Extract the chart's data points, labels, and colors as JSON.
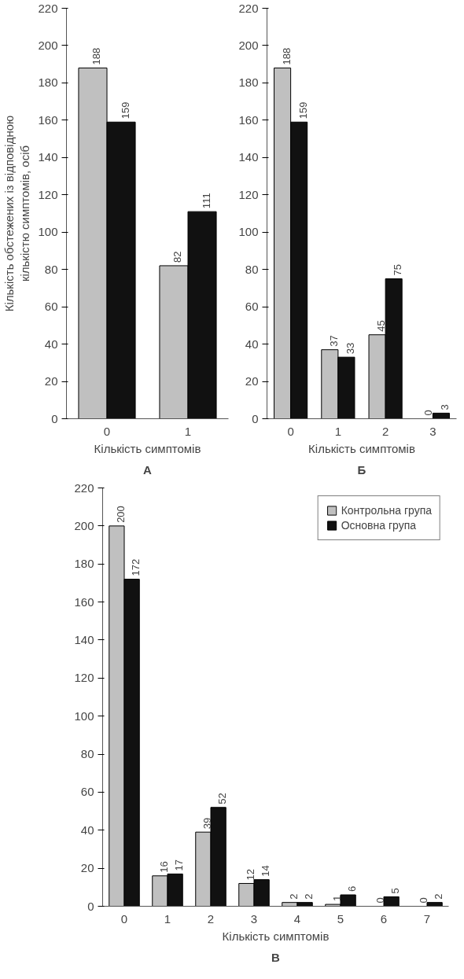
{
  "chart_data": [
    {
      "type": "bar",
      "title": "А",
      "xlabel": "Кількість симптомів",
      "ylabel": "Кількість обстежених із відповідною\nкількістю симптомів, осіб",
      "categories": [
        "0",
        "1"
      ],
      "ylim": [
        0,
        220
      ],
      "yticks": [
        0,
        20,
        40,
        60,
        80,
        100,
        120,
        140,
        160,
        180,
        200,
        220
      ],
      "grid": false,
      "legend": false,
      "data_labels": true,
      "series": [
        {
          "color": "#c0c0c0",
          "values": [
            188,
            82
          ]
        },
        {
          "color": "#111111",
          "values": [
            159,
            111
          ]
        }
      ]
    },
    {
      "type": "bar",
      "title": "Б",
      "xlabel": "Кількість симптомів",
      "categories": [
        "0",
        "1",
        "2",
        "3"
      ],
      "ylim": [
        0,
        220
      ],
      "yticks": [
        0,
        20,
        40,
        60,
        80,
        100,
        120,
        140,
        160,
        180,
        200,
        220
      ],
      "grid": false,
      "legend": false,
      "data_labels": true,
      "series": [
        {
          "color": "#c0c0c0",
          "values": [
            188,
            37,
            45,
            0
          ]
        },
        {
          "color": "#111111",
          "values": [
            159,
            33,
            75,
            3
          ]
        }
      ]
    },
    {
      "type": "bar",
      "title": "В",
      "xlabel": "Кількість симптомів",
      "categories": [
        "0",
        "1",
        "2",
        "3",
        "4",
        "5",
        "6",
        "7"
      ],
      "ylim": [
        0,
        220
      ],
      "yticks": [
        0,
        20,
        40,
        60,
        80,
        100,
        120,
        140,
        160,
        180,
        200,
        220
      ],
      "grid": false,
      "legend": "top right",
      "data_labels": true,
      "series": [
        {
          "name": "Контрольна група",
          "color": "#c0c0c0",
          "values": [
            200,
            16,
            39,
            12,
            2,
            1,
            0,
            0
          ]
        },
        {
          "name": "Основна група",
          "color": "#111111",
          "values": [
            172,
            17,
            52,
            14,
            2,
            6,
            5,
            2
          ]
        }
      ]
    }
  ]
}
